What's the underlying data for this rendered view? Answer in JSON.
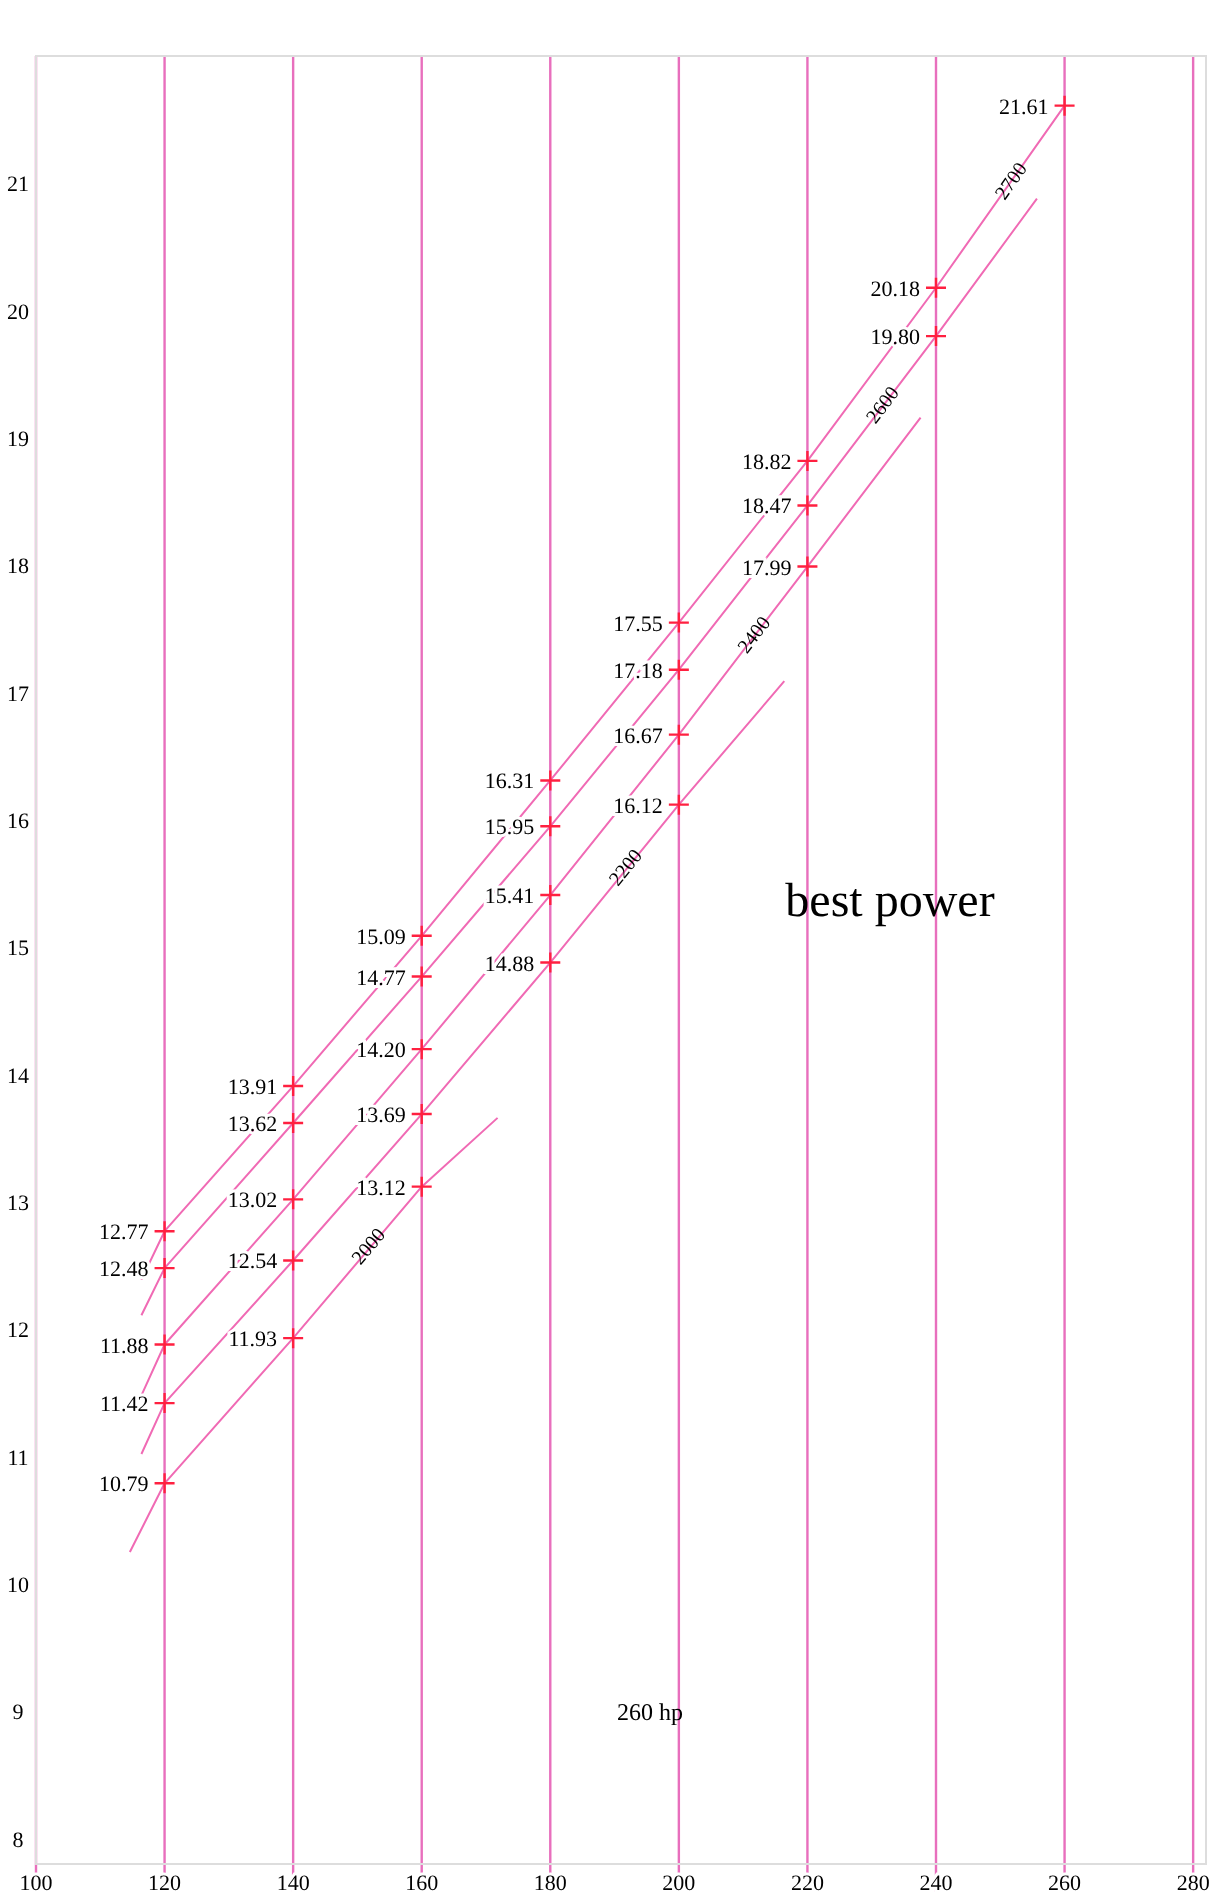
{
  "chart_data": {
    "type": "line",
    "xlim": [
      100,
      282
    ],
    "xticks": [
      100,
      120,
      140,
      160,
      180,
      200,
      220,
      240,
      260,
      280
    ],
    "ylim": [
      7.8,
      22
    ],
    "yticks": [
      8,
      9,
      10,
      11,
      12,
      13,
      14,
      15,
      16,
      17,
      18,
      19,
      20,
      21
    ],
    "grid": "x",
    "marker": "cross",
    "line_style": "solid",
    "series": [
      {
        "name": "2700",
        "color": "#f06ab4",
        "x": [
          116.4,
          120,
          140,
          160,
          180,
          200,
          220,
          240,
          260
        ],
        "values": [
          12.39,
          12.77,
          13.91,
          15.09,
          16.31,
          17.55,
          18.82,
          20.18,
          21.61
        ],
        "value_labels": [
          null,
          "12.77",
          "13.91",
          "15.09",
          "16.31",
          "17.55",
          "18.82",
          "20.18",
          "21.61"
        ]
      },
      {
        "name": "2600",
        "color": "#f06ab4",
        "x": [
          116.4,
          120,
          140,
          160,
          180,
          200,
          220,
          240,
          255.7
        ],
        "values": [
          12.11,
          12.48,
          13.62,
          14.77,
          15.95,
          17.18,
          18.47,
          19.8,
          20.88
        ],
        "value_labels": [
          null,
          "12.48",
          "13.62",
          "14.77",
          "15.95",
          "17.18",
          "18.47",
          "19.80",
          null
        ]
      },
      {
        "name": "2400",
        "color": "#f06ab4",
        "x": [
          116.4,
          120,
          140,
          160,
          180,
          200,
          220,
          237.6
        ],
        "values": [
          11.48,
          11.88,
          13.02,
          14.2,
          15.41,
          16.67,
          17.99,
          19.16
        ],
        "value_labels": [
          null,
          "11.88",
          "13.02",
          "14.20",
          "15.41",
          "16.67",
          "17.99",
          null
        ]
      },
      {
        "name": "2200",
        "color": "#f06ab4",
        "x": [
          116.4,
          120,
          140,
          160,
          180,
          200,
          216.4
        ],
        "values": [
          11.02,
          11.42,
          12.54,
          13.69,
          14.88,
          16.12,
          17.09
        ],
        "value_labels": [
          null,
          "11.42",
          "12.54",
          "13.69",
          "14.88",
          "16.12",
          null
        ]
      },
      {
        "name": "2000",
        "color": "#f06ab4",
        "x": [
          114.6,
          120,
          140,
          160,
          171.8
        ],
        "values": [
          10.25,
          10.79,
          11.93,
          13.12,
          13.66
        ],
        "value_labels": [
          null,
          "10.79",
          "11.93",
          "13.12",
          null
        ]
      }
    ],
    "annotations": [
      "best power",
      "260 hp"
    ]
  }
}
